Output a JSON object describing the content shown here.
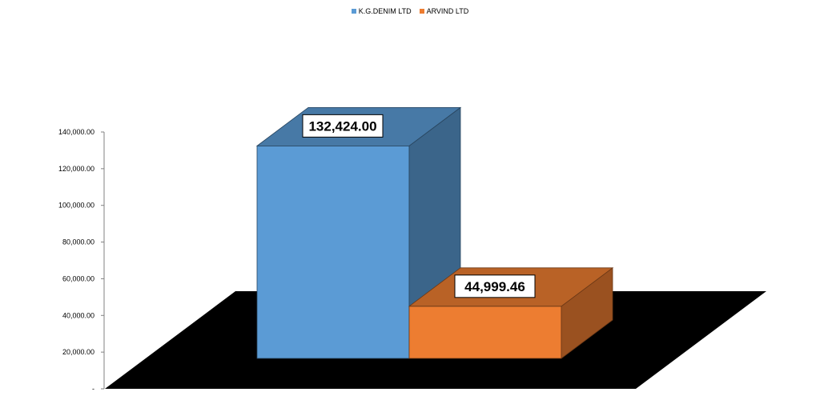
{
  "chart_data": {
    "type": "bar",
    "categories": [
      ""
    ],
    "series": [
      {
        "name": "K.G.DENIM  LTD",
        "values": [
          132424.0
        ],
        "color": "#5b9bd5",
        "label": "132,424.00"
      },
      {
        "name": "ARVIND LTD",
        "values": [
          44999.46
        ],
        "color": "#ed7d31",
        "label": "44,999.46"
      }
    ],
    "title": "",
    "xlabel": "",
    "ylabel": "",
    "ylim": [
      0,
      140000
    ],
    "yticks": [
      "-",
      "20,000.00",
      "40,000.00",
      "60,000.00",
      "80,000.00",
      "100,000.00",
      "120,000.00",
      "140,000.00"
    ],
    "grid": false,
    "legend_position": "top",
    "floor_color": "#000000",
    "style": "3d"
  }
}
